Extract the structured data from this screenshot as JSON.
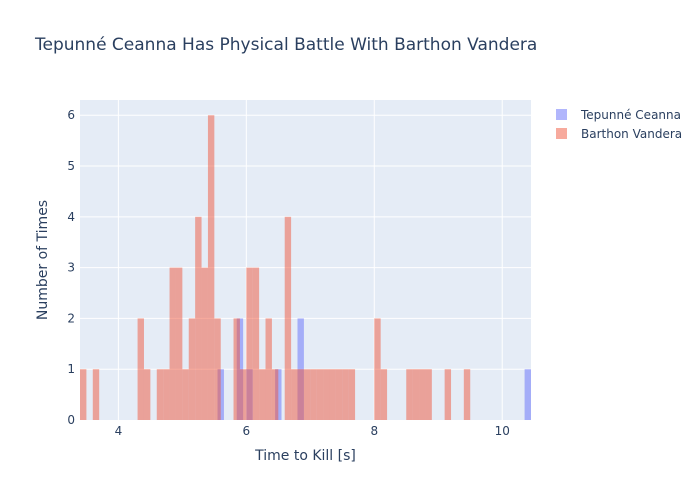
{
  "chart_data": {
    "type": "bar",
    "title": "Tepunné Ceanna Has Physical Battle With Barthon Vandera",
    "xlabel": "Time to Kill [s]",
    "ylabel": "Number of Times",
    "xlim": [
      3.4,
      10.45
    ],
    "ylim": [
      0,
      6.3
    ],
    "xticks": [
      "4",
      "6",
      "8",
      "10"
    ],
    "xtick_values": [
      4,
      6,
      8,
      10
    ],
    "yticks": [
      "0",
      "1",
      "2",
      "3",
      "4",
      "5",
      "6"
    ],
    "ytick_values": [
      0,
      1,
      2,
      3,
      4,
      5,
      6
    ],
    "bin_width": 0.1,
    "grid": true,
    "legend_position": "top-right",
    "series": [
      {
        "name": "Tepunné Ceanna",
        "color": "#636efa",
        "bins": [
          {
            "x": 5.6,
            "y": 1
          },
          {
            "x": 5.9,
            "y": 2
          },
          {
            "x": 6.05,
            "y": 1
          },
          {
            "x": 6.5,
            "y": 1
          },
          {
            "x": 6.85,
            "y": 2
          },
          {
            "x": 10.4,
            "y": 1
          }
        ]
      },
      {
        "name": "Barthon Vandera",
        "color": "#ef553b",
        "bins": [
          {
            "x": 3.45,
            "y": 1
          },
          {
            "x": 3.65,
            "y": 1
          },
          {
            "x": 4.35,
            "y": 2
          },
          {
            "x": 4.45,
            "y": 1
          },
          {
            "x": 4.65,
            "y": 1
          },
          {
            "x": 4.75,
            "y": 1
          },
          {
            "x": 4.85,
            "y": 3
          },
          {
            "x": 4.95,
            "y": 3
          },
          {
            "x": 5.05,
            "y": 1
          },
          {
            "x": 5.15,
            "y": 2
          },
          {
            "x": 5.25,
            "y": 4
          },
          {
            "x": 5.35,
            "y": 3
          },
          {
            "x": 5.45,
            "y": 6
          },
          {
            "x": 5.55,
            "y": 2
          },
          {
            "x": 5.85,
            "y": 2
          },
          {
            "x": 5.95,
            "y": 1
          },
          {
            "x": 6.05,
            "y": 3
          },
          {
            "x": 6.15,
            "y": 3
          },
          {
            "x": 6.25,
            "y": 1
          },
          {
            "x": 6.35,
            "y": 2
          },
          {
            "x": 6.45,
            "y": 1
          },
          {
            "x": 6.65,
            "y": 4
          },
          {
            "x": 6.75,
            "y": 1
          },
          {
            "x": 6.85,
            "y": 1
          },
          {
            "x": 6.95,
            "y": 1
          },
          {
            "x": 7.05,
            "y": 1
          },
          {
            "x": 7.15,
            "y": 1
          },
          {
            "x": 7.25,
            "y": 1
          },
          {
            "x": 7.35,
            "y": 1
          },
          {
            "x": 7.45,
            "y": 1
          },
          {
            "x": 7.55,
            "y": 1
          },
          {
            "x": 7.65,
            "y": 1
          },
          {
            "x": 8.05,
            "y": 2
          },
          {
            "x": 8.15,
            "y": 1
          },
          {
            "x": 8.55,
            "y": 1
          },
          {
            "x": 8.65,
            "y": 1
          },
          {
            "x": 8.75,
            "y": 1
          },
          {
            "x": 8.85,
            "y": 1
          },
          {
            "x": 9.15,
            "y": 1
          },
          {
            "x": 9.45,
            "y": 1
          }
        ]
      }
    ]
  }
}
